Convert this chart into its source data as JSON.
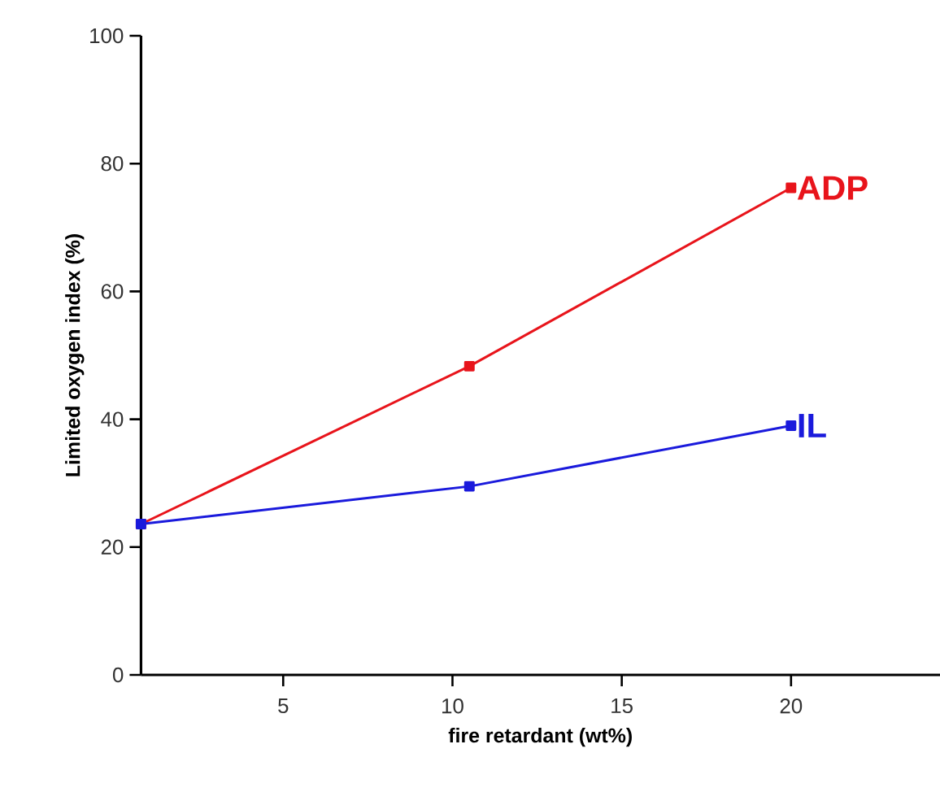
{
  "chart_data": {
    "type": "line",
    "xlabel": "fire retardant (wt%)",
    "ylabel": "Limited oxygen index (%)",
    "x": [
      0.8,
      10.5,
      20
    ],
    "series": [
      {
        "name": "ADP",
        "color": "#e8141b",
        "values": [
          23.6,
          48.3,
          76.2
        ]
      },
      {
        "name": "IL",
        "color": "#1a1adc",
        "values": [
          23.6,
          29.5,
          39
        ]
      }
    ],
    "xlim": [
      0.8,
      24.4
    ],
    "xticks": [
      5,
      10,
      15,
      20
    ],
    "ylim": [
      0,
      100
    ],
    "yticks": [
      0,
      20,
      40,
      60,
      80,
      100
    ],
    "grid": false,
    "legend": false,
    "marker": "square",
    "line_style": "solid"
  }
}
